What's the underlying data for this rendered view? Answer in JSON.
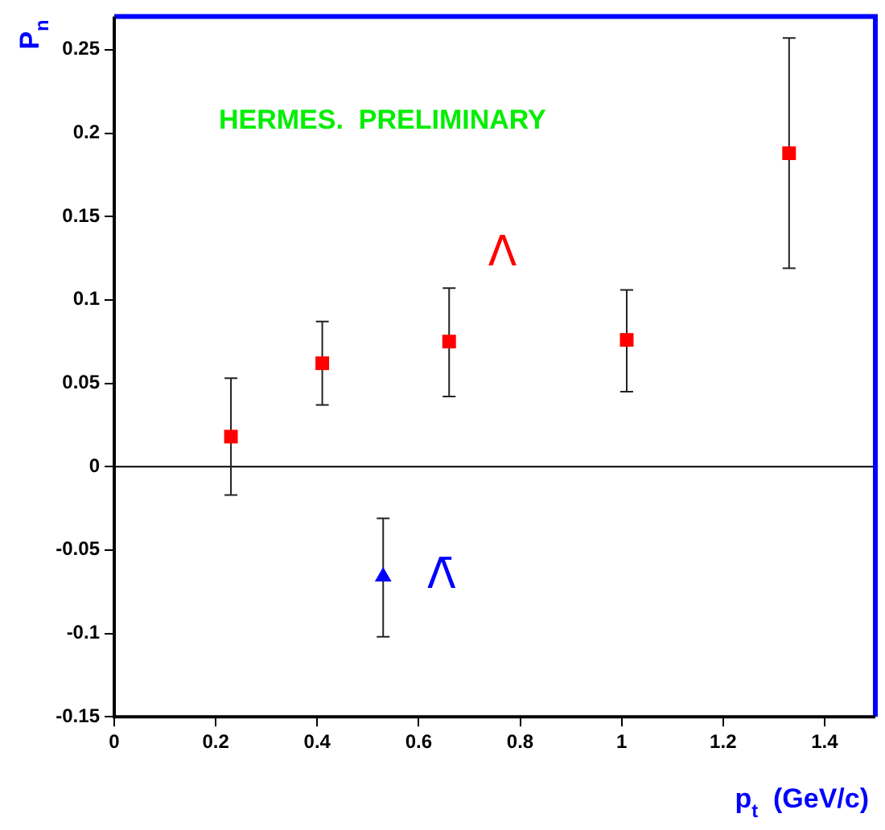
{
  "chart_data": {
    "type": "scatter",
    "xlabel": "p$_{t}$  (GeV/c)",
    "ylabel": "P$_{n}$",
    "annotations": [
      "HERMES.  PRELIMINARY"
    ],
    "xlim": [
      0,
      1.5
    ],
    "xticks": [
      0,
      0.2,
      0.4,
      0.6,
      0.8,
      1,
      1.2,
      1.4
    ],
    "ylim": [
      -0.15,
      0.27
    ],
    "yticks": [
      -0.15,
      -0.1,
      -0.05,
      0,
      0.05,
      0.1,
      0.15,
      0.2,
      0.25
    ],
    "grid": false,
    "legend": false,
    "ref_lines": [
      {
        "axis": "y",
        "value": 0,
        "color": "#000000"
      }
    ],
    "series": [
      {
        "name": "Λ",
        "color": "#ff0000",
        "marker": "square",
        "x": [
          0.23,
          0.41,
          0.66,
          1.01,
          1.33
        ],
        "values": [
          0.018,
          0.062,
          0.075,
          0.076,
          0.188
        ],
        "errors": [
          [
            -0.017,
            0.053
          ],
          [
            0.037,
            0.087
          ],
          [
            0.042,
            0.107
          ],
          [
            0.045,
            0.106
          ],
          [
            0.119,
            0.257
          ]
        ]
      },
      {
        "name": "Λ̄",
        "color": "#0000ff",
        "marker": "triangle",
        "x": [
          0.53
        ],
        "values": [
          -0.066
        ],
        "errors": [
          [
            -0.102,
            -0.031
          ]
        ]
      }
    ]
  }
}
